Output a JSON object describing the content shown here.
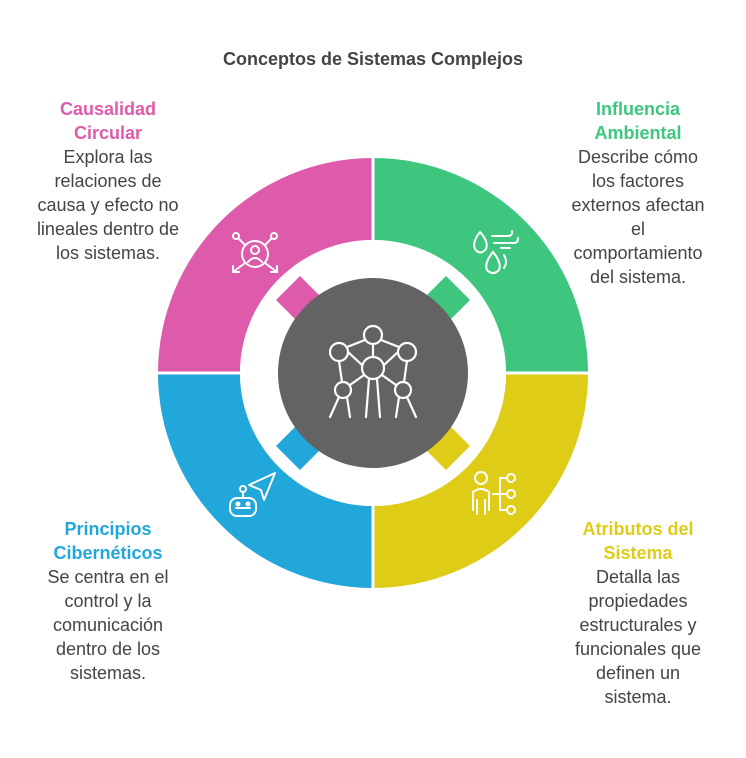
{
  "title": "Conceptos de Sistemas Complejos",
  "colors": {
    "pink": "#DD5BAA",
    "green": "#3EC67F",
    "blue": "#22A7DB",
    "yellow": "#DECC16",
    "center": "#636363"
  },
  "sections": {
    "causalidad": {
      "title": "Causalidad\nCircular",
      "desc": "Explora las\nrelaciones de\ncausa y efecto no\nlineales dentro de\nlos sistemas.",
      "icon": "people-network-icon"
    },
    "influencia": {
      "title": "Influencia\nAmbiental",
      "desc": "Describe cómo\nlos factores\nexternos afectan\nel\ncomportamiento\ndel sistema.",
      "icon": "weather-elements-icon"
    },
    "atributos": {
      "title": "Atributos del\nSistema",
      "desc": "Detalla las\npropiedades\nestructurales y\nfuncionales que\ndefinen un\nsistema.",
      "icon": "person-connections-icon"
    },
    "principios": {
      "title": "Principios\nCibernéticos",
      "desc": "Se centra en el\ncontrol y la\ncomunicación\ndentro de los\nsistemas.",
      "icon": "robot-navigation-icon"
    }
  },
  "center_icon": "atomium-network-icon"
}
